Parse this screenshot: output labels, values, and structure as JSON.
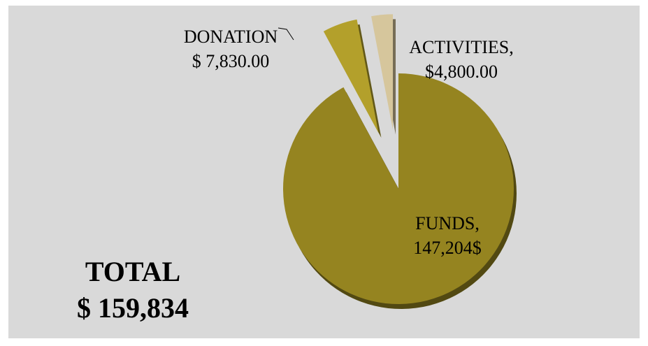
{
  "chart_data": {
    "type": "pie",
    "categories": [
      "FUNDS,",
      "DONATION",
      "ACTIVITIES,"
    ],
    "values": [
      147204,
      7830,
      4800
    ],
    "value_labels": [
      "147,204$",
      "$ 7,830.00",
      "$4,800.00"
    ],
    "colors": [
      "#958420",
      "#b3a02b",
      "#d6c69c"
    ],
    "annotations": [
      "TOTAL",
      "$ 159,834"
    ]
  }
}
